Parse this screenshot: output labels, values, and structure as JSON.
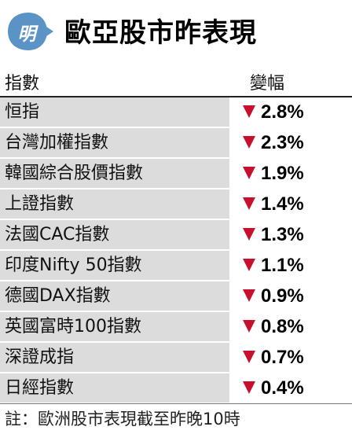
{
  "header": {
    "logo_char": "明",
    "title": "歐亞股市昨表現"
  },
  "columns": {
    "index_label": "指數",
    "change_label": "變幅"
  },
  "colors": {
    "row_shade": "#dcdcdc",
    "down_arrow": "#c8102e",
    "logo_blue": "#5b93c7"
  },
  "rows": [
    {
      "name": "恒指",
      "change": "2.8%",
      "direction": "down"
    },
    {
      "name": "台灣加權指數",
      "change": "2.3%",
      "direction": "down"
    },
    {
      "name": "韓國綜合股價指數",
      "change": "1.9%",
      "direction": "down"
    },
    {
      "name": "上證指數",
      "change": "1.4%",
      "direction": "down"
    },
    {
      "name": "法國CAC指數",
      "change": "1.3%",
      "direction": "down"
    },
    {
      "name": "印度Nifty 50指數",
      "change": "1.1%",
      "direction": "down"
    },
    {
      "name": "德國DAX指數",
      "change": "0.9%",
      "direction": "down"
    },
    {
      "name": "英國富時100指數",
      "change": "0.8%",
      "direction": "down"
    },
    {
      "name": "深證成指",
      "change": "0.7%",
      "direction": "down"
    },
    {
      "name": "日經指數",
      "change": "0.4%",
      "direction": "down"
    }
  ],
  "note": "註：歐洲股市表現截至昨晚10時"
}
